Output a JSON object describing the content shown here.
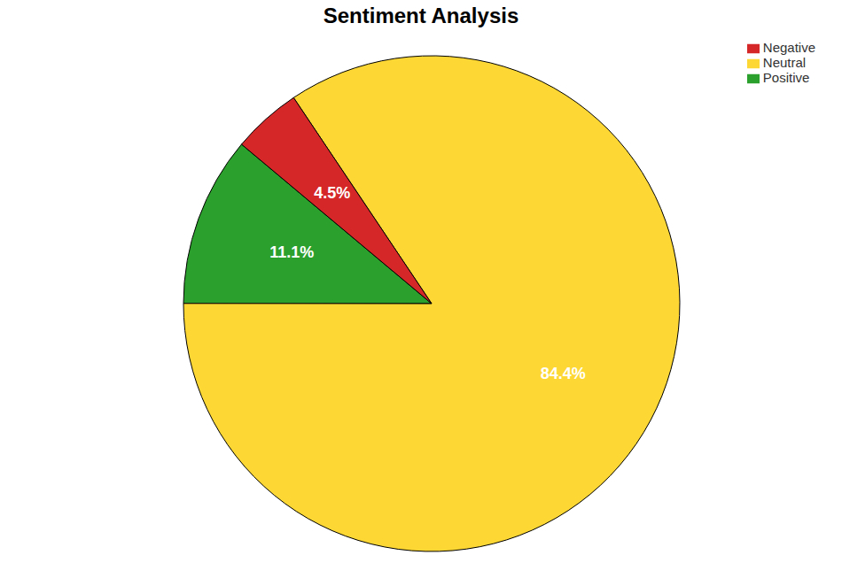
{
  "chart_data": {
    "type": "pie",
    "title": "Sentiment Analysis",
    "categories": [
      "Positive",
      "Neutral",
      "Negative"
    ],
    "values": [
      11.1,
      84.4,
      4.5
    ],
    "value_labels": [
      "11.1%",
      "84.4%",
      "4.5%"
    ],
    "colors": [
      "#2ca02c",
      "#fdd835",
      "#d62728"
    ],
    "data_labels": true,
    "legend": "upper right"
  }
}
